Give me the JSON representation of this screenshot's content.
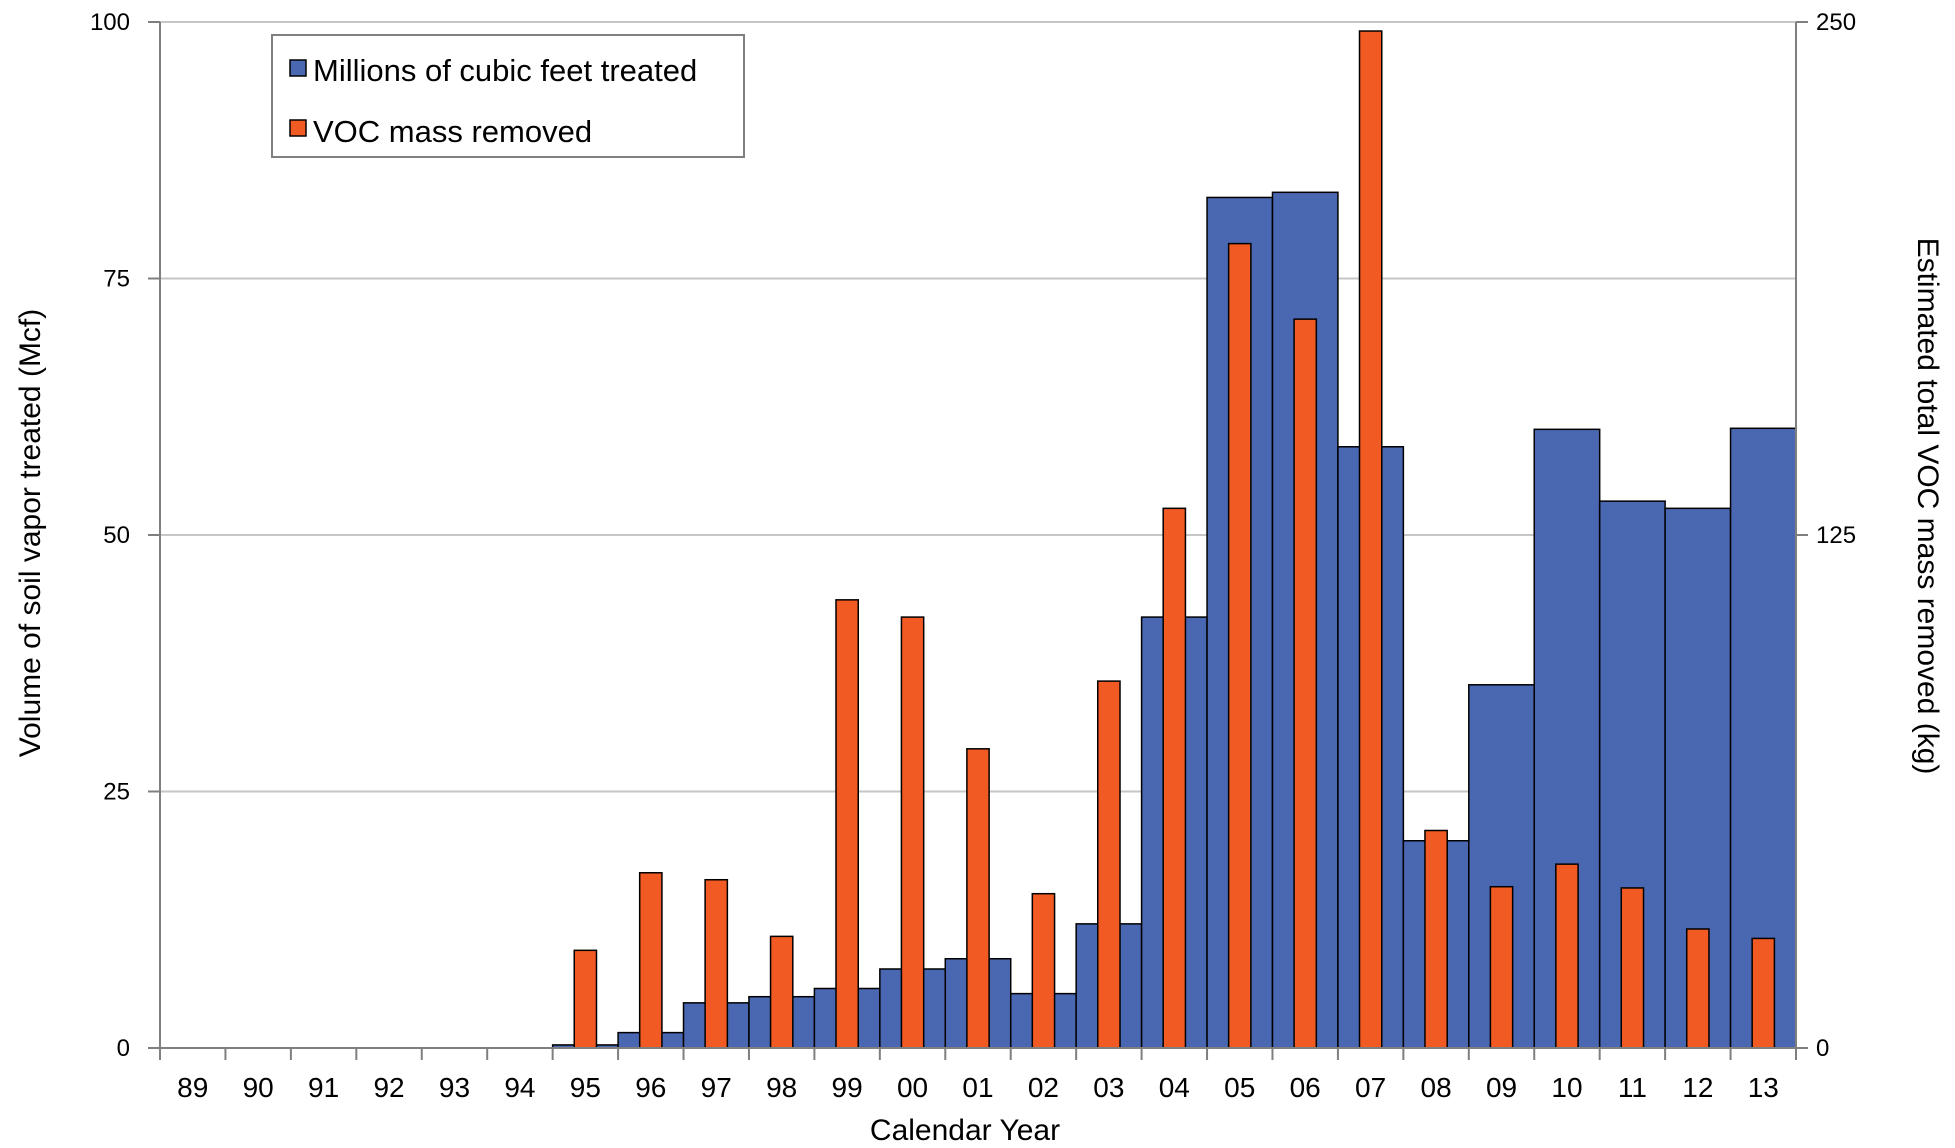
{
  "chart_data": {
    "type": "bar",
    "xlabel": "Calendar Year",
    "ylabel": "Volume of soil vapor treated (Mcf)",
    "y2label": "Estimated total VOC mass removed (kg)",
    "ylim": [
      0,
      100
    ],
    "y2lim": [
      0,
      250
    ],
    "yticks": [
      "0",
      "25",
      "50",
      "75",
      "100"
    ],
    "y2ticks": [
      "0",
      "125",
      "250"
    ],
    "grid": "horizontal",
    "legend_position": "top-left",
    "categories": [
      "89",
      "90",
      "91",
      "92",
      "93",
      "94",
      "95",
      "96",
      "97",
      "98",
      "99",
      "00",
      "01",
      "02",
      "03",
      "04",
      "05",
      "06",
      "07",
      "08",
      "09",
      "10",
      "11",
      "12",
      "13"
    ],
    "series": [
      {
        "name": "Millions of cubic feet treated",
        "axis": "left",
        "color": "#4a67b1",
        "values": [
          0,
          0,
          0,
          0,
          0,
          0,
          0.3,
          1.5,
          4.4,
          5,
          5.8,
          7.7,
          8.7,
          5.3,
          12.1,
          42,
          82.9,
          83.4,
          58.6,
          20.2,
          35.4,
          60.3,
          53.3,
          52.6,
          60.4
        ]
      },
      {
        "name": "VOC mass removed",
        "axis": "right",
        "color": "#f15a22",
        "values": [
          null,
          null,
          null,
          null,
          null,
          null,
          23.8,
          42.7,
          41,
          27.2,
          109.2,
          105,
          72.9,
          37.6,
          89.4,
          131.5,
          196,
          177.6,
          247.8,
          53,
          39.3,
          44.8,
          39,
          29,
          26.7
        ]
      }
    ]
  }
}
